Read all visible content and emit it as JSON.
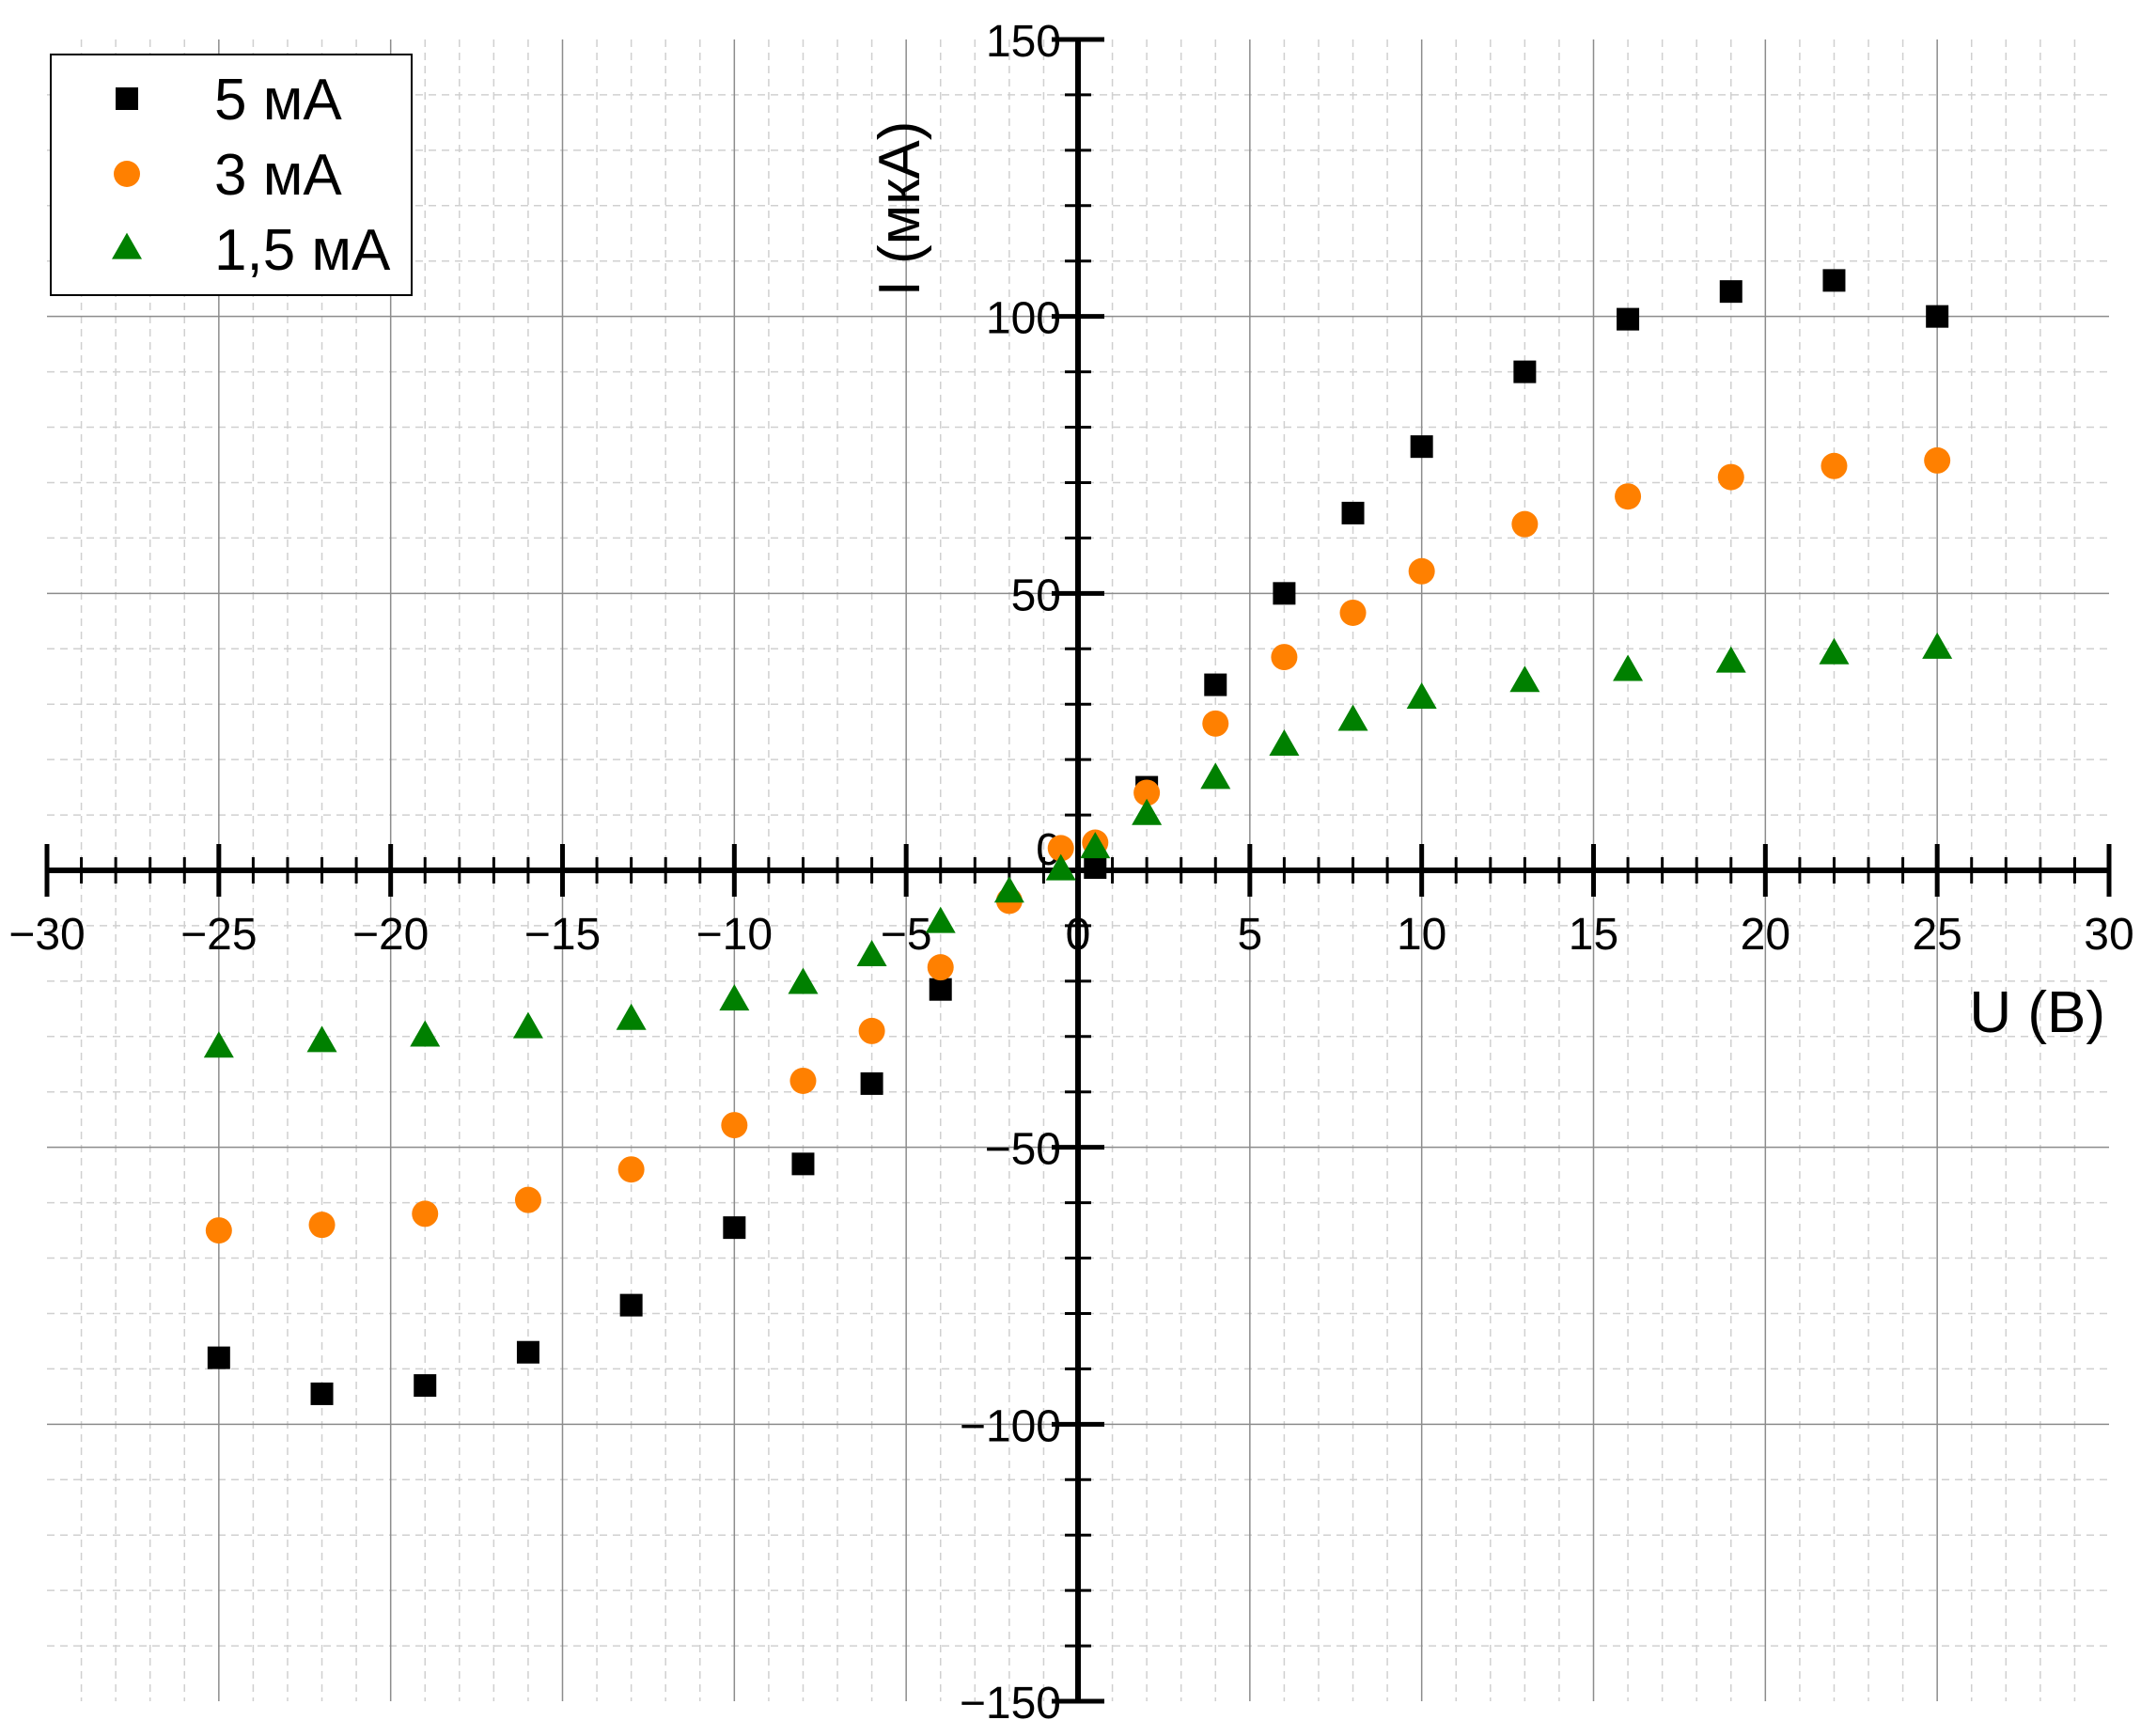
{
  "chart_data": {
    "type": "scatter",
    "title": "",
    "xlabel": "U (В)",
    "ylabel": "I (мкА)",
    "xlim": [
      -30,
      30
    ],
    "ylim": [
      -150,
      150
    ],
    "x_ticks": [
      -30,
      -25,
      -20,
      -15,
      -10,
      -5,
      0,
      5,
      10,
      15,
      20,
      25,
      30
    ],
    "y_ticks": [
      -150,
      -100,
      -50,
      0,
      50,
      100,
      150
    ],
    "grid": true,
    "legend": "top-left",
    "series": [
      {
        "name": "5 мА",
        "marker": "square",
        "color": "#000000",
        "points": [
          [
            -25,
            -88
          ],
          [
            -22,
            -94.5
          ],
          [
            -19,
            -93
          ],
          [
            -16,
            -87
          ],
          [
            -13,
            -78.5
          ],
          [
            -10,
            -64.5
          ],
          [
            -8,
            -53
          ],
          [
            -6,
            -38.5
          ],
          [
            -4,
            -21.5
          ],
          [
            0.5,
            0.5
          ],
          [
            2,
            15
          ],
          [
            4,
            33.5
          ],
          [
            6,
            50
          ],
          [
            8,
            64.5
          ],
          [
            10,
            76.5
          ],
          [
            13,
            90
          ],
          [
            16,
            99.5
          ],
          [
            19,
            104.5
          ],
          [
            22,
            106.5
          ],
          [
            25,
            100
          ]
        ]
      },
      {
        "name": "3 мА",
        "marker": "circle",
        "color": "#ff8000",
        "points": [
          [
            -25,
            -65
          ],
          [
            -22,
            -64
          ],
          [
            -19,
            -62
          ],
          [
            -16,
            -59.5
          ],
          [
            -13,
            -54
          ],
          [
            -10,
            -46
          ],
          [
            -8,
            -38
          ],
          [
            -6,
            -29
          ],
          [
            -4,
            -17.5
          ],
          [
            -2,
            -5.5
          ],
          [
            -0.5,
            4
          ],
          [
            0.5,
            5
          ],
          [
            2,
            14
          ],
          [
            4,
            26.5
          ],
          [
            6,
            38.5
          ],
          [
            8,
            46.5
          ],
          [
            10,
            54
          ],
          [
            13,
            62.5
          ],
          [
            16,
            67.5
          ],
          [
            19,
            71
          ],
          [
            22,
            73
          ],
          [
            25,
            74
          ]
        ]
      },
      {
        "name": "1,5 мА",
        "marker": "triangle",
        "color": "#008000",
        "points": [
          [
            -25,
            -32
          ],
          [
            -22,
            -31
          ],
          [
            -19,
            -30
          ],
          [
            -16,
            -28.5
          ],
          [
            -13,
            -27
          ],
          [
            -10,
            -23.5
          ],
          [
            -8,
            -20.5
          ],
          [
            -6,
            -15.5
          ],
          [
            -4,
            -9.5
          ],
          [
            -2,
            -4
          ],
          [
            -0.5,
            0
          ],
          [
            0.5,
            4
          ],
          [
            2,
            10
          ],
          [
            4,
            16.5
          ],
          [
            6,
            22.5
          ],
          [
            8,
            27
          ],
          [
            10,
            31
          ],
          [
            13,
            34
          ],
          [
            16,
            36
          ],
          [
            19,
            37.5
          ],
          [
            22,
            39
          ],
          [
            25,
            40
          ]
        ]
      }
    ]
  }
}
